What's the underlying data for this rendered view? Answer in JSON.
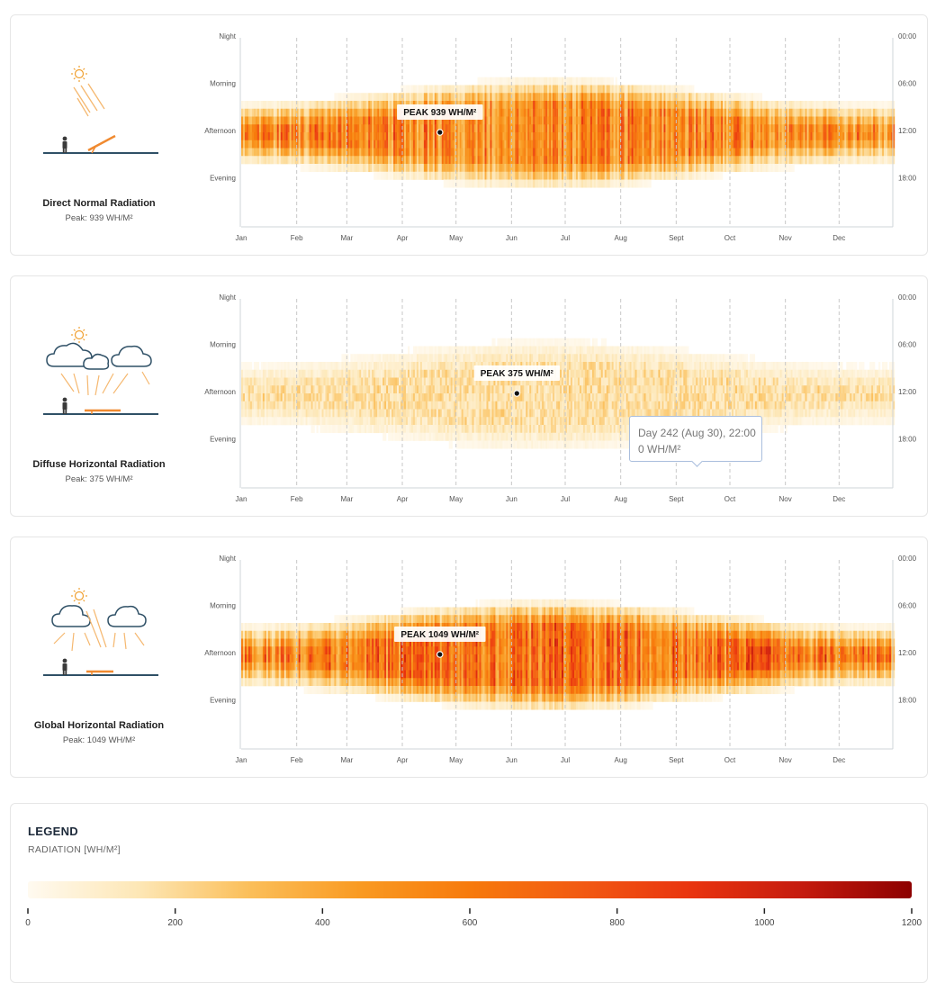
{
  "panels": [
    {
      "id": "dnr",
      "title": "Direct Normal Radiation",
      "peak_text": "Peak: 939 WH/M²",
      "peak_label": "PEAK 939 WH/M²",
      "illustration": "sun-direct-panel-icon"
    },
    {
      "id": "dhr",
      "title": "Diffuse Horizontal Radiation",
      "peak_text": "Peak: 375 WH/M²",
      "peak_label": "PEAK 375 WH/M²",
      "illustration": "clouds-diffuse-icon",
      "tooltip": {
        "line1": "Day 242 (Aug 30), 22:00",
        "line2": "0 WH/M²"
      }
    },
    {
      "id": "ghr",
      "title": "Global Horizontal Radiation",
      "peak_text": "Peak: 1049 WH/M²",
      "peak_label": "PEAK 1049 WH/M²",
      "illustration": "clouds-global-icon"
    }
  ],
  "chart_data": [
    {
      "type": "heatmap",
      "title": "Direct Normal Radiation",
      "x_ticks": [
        "Jan",
        "Feb",
        "Mar",
        "Apr",
        "May",
        "Jun",
        "Jul",
        "Aug",
        "Sept",
        "Oct",
        "Nov",
        "Dec"
      ],
      "x_tick_days": [
        1,
        32,
        60,
        91,
        121,
        152,
        182,
        213,
        244,
        274,
        305,
        335
      ],
      "y_labels_left": [
        "Night",
        "Morning",
        "Afternoon",
        "Evening"
      ],
      "y_labels_right": [
        "00:00",
        "06:00",
        "12:00",
        "18:00"
      ],
      "y_hours": [
        0,
        6,
        12,
        18
      ],
      "xlim": [
        1,
        365
      ],
      "ylim": [
        0,
        24
      ],
      "peak": {
        "day": 112,
        "hour": 12,
        "value": 939
      },
      "max_value": 939,
      "grid": true
    },
    {
      "type": "heatmap",
      "title": "Diffuse Horizontal Radiation",
      "x_ticks": [
        "Jan",
        "Feb",
        "Mar",
        "Apr",
        "May",
        "Jun",
        "Jul",
        "Aug",
        "Sept",
        "Oct",
        "Nov",
        "Dec"
      ],
      "x_tick_days": [
        1,
        32,
        60,
        91,
        121,
        152,
        182,
        213,
        244,
        274,
        305,
        335
      ],
      "y_labels_left": [
        "Night",
        "Morning",
        "Afternoon",
        "Evening"
      ],
      "y_labels_right": [
        "00:00",
        "06:00",
        "12:00",
        "18:00"
      ],
      "y_hours": [
        0,
        6,
        12,
        18
      ],
      "xlim": [
        1,
        365
      ],
      "ylim": [
        0,
        24
      ],
      "peak": {
        "day": 155,
        "hour": 12,
        "value": 375
      },
      "max_value": 375,
      "grid": true
    },
    {
      "type": "heatmap",
      "title": "Global Horizontal Radiation",
      "x_ticks": [
        "Jan",
        "Feb",
        "Mar",
        "Apr",
        "May",
        "Jun",
        "Jul",
        "Aug",
        "Sept",
        "Oct",
        "Nov",
        "Dec"
      ],
      "x_tick_days": [
        1,
        32,
        60,
        91,
        121,
        152,
        182,
        213,
        244,
        274,
        305,
        335
      ],
      "y_labels_left": [
        "Night",
        "Morning",
        "Afternoon",
        "Evening"
      ],
      "y_labels_right": [
        "00:00",
        "06:00",
        "12:00",
        "18:00"
      ],
      "y_hours": [
        0,
        6,
        12,
        18
      ],
      "xlim": [
        1,
        365
      ],
      "ylim": [
        0,
        24
      ],
      "peak": {
        "day": 112,
        "hour": 12,
        "value": 1049
      },
      "max_value": 1049,
      "grid": true
    }
  ],
  "legend": {
    "title": "LEGEND",
    "subtitle": "RADIATION [WH/M²]",
    "ticks": [
      0,
      200,
      400,
      600,
      800,
      1000,
      1200
    ],
    "range": [
      0,
      1200
    ],
    "colors": [
      "#fffaf0",
      "#fde7b6",
      "#fbbf5a",
      "#f99a22",
      "#f77a0c",
      "#f25a12",
      "#e9340f",
      "#c51b0e",
      "#8d0000"
    ]
  }
}
